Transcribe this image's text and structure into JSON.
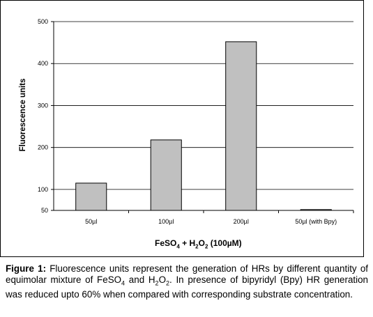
{
  "chart_data": {
    "type": "bar",
    "categories": [
      "50µl",
      "100µl",
      "200µl",
      "50µl (with Bpy)"
    ],
    "values": [
      115,
      218,
      452,
      52
    ],
    "ylabel": "Fluorescence units",
    "xlabel_parts": [
      "FeSO",
      "4",
      " + H",
      "2",
      "O",
      "2",
      " (100µM)"
    ],
    "ylim": [
      50,
      500
    ],
    "yticks": [
      50,
      100,
      200,
      300,
      400,
      500
    ],
    "grid": true,
    "bar_color": "#c0c0c0",
    "legend": "none"
  },
  "caption": {
    "label": "Figure 1:",
    "parts": [
      " Fluorescence units represent the generation of HRs by different quantity of equimolar mixture of FeSO",
      "4",
      " and H",
      "2",
      "O",
      "2",
      ". In presence of bipyridyl (Bpy) HR generation was reduced upto 60% when compared with corresponding substrate concentration."
    ]
  }
}
